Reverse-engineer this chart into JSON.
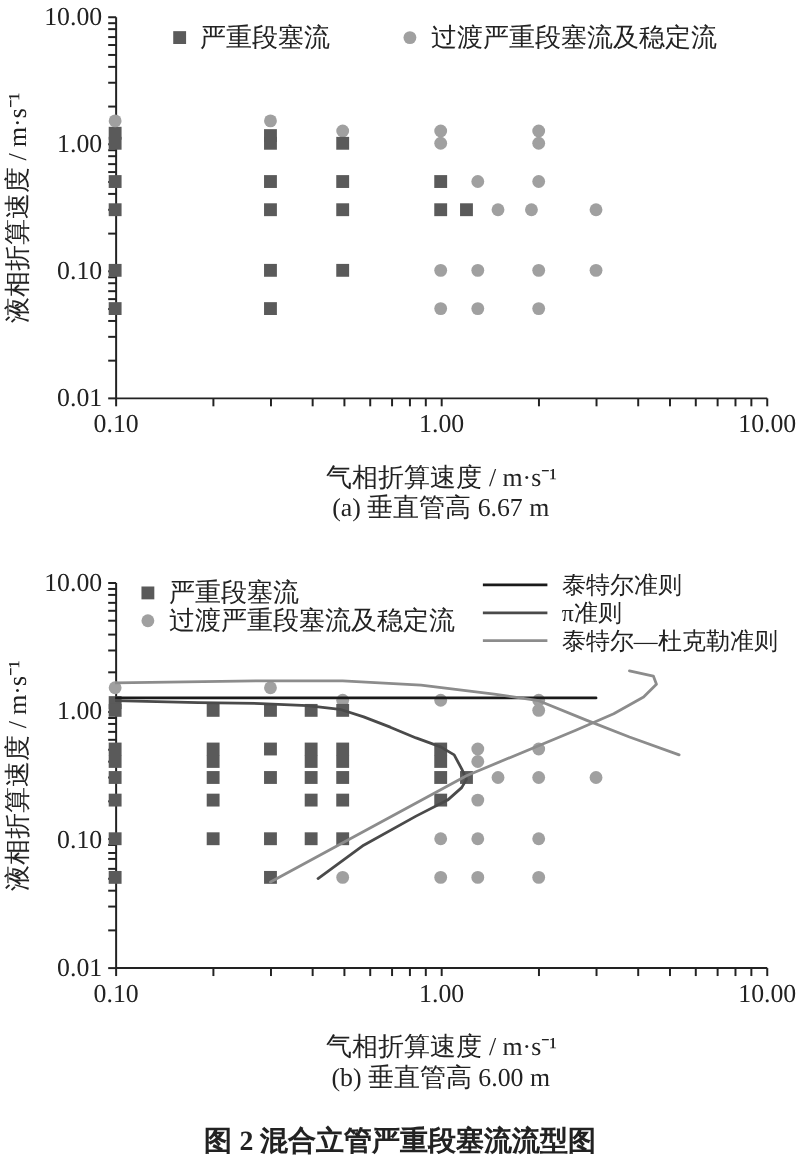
{
  "chart_data": [
    {
      "type": "scatter",
      "title": "(a) 垂直管高 6.67 m",
      "xlabel": "气相折算速度 / m·s⁻¹",
      "ylabel": "液相折算速度 / m·s⁻¹",
      "log": "xy",
      "legend": "top",
      "xlim": [
        0.1,
        10
      ],
      "ylim": [
        0.01,
        10
      ],
      "xticks": [
        {
          "value": 0.1,
          "label": "0.10"
        },
        {
          "value": 0.2,
          "label": null
        },
        {
          "value": 0.3,
          "label": null
        },
        {
          "value": 0.4,
          "label": null
        },
        {
          "value": 0.5,
          "label": null
        },
        {
          "value": 0.6,
          "label": null
        },
        {
          "value": 0.7,
          "label": null
        },
        {
          "value": 0.8,
          "label": null
        },
        {
          "value": 0.9,
          "label": null
        },
        {
          "value": 1,
          "label": "1.00"
        },
        {
          "value": 2,
          "label": null
        },
        {
          "value": 3,
          "label": null
        },
        {
          "value": 4,
          "label": null
        },
        {
          "value": 5,
          "label": null
        },
        {
          "value": 6,
          "label": null
        },
        {
          "value": 7,
          "label": null
        },
        {
          "value": 8,
          "label": null
        },
        {
          "value": 9,
          "label": null
        },
        {
          "value": 10,
          "label": "10.00"
        }
      ],
      "yticks": [
        {
          "value": 0.01,
          "label": "0.01"
        },
        {
          "value": 0.02,
          "label": null
        },
        {
          "value": 0.03,
          "label": null
        },
        {
          "value": 0.04,
          "label": null
        },
        {
          "value": 0.05,
          "label": null
        },
        {
          "value": 0.06,
          "label": null
        },
        {
          "value": 0.07,
          "label": null
        },
        {
          "value": 0.08,
          "label": null
        },
        {
          "value": 0.09,
          "label": null
        },
        {
          "value": 0.1,
          "label": "0.10"
        },
        {
          "value": 0.2,
          "label": null
        },
        {
          "value": 0.3,
          "label": null
        },
        {
          "value": 0.4,
          "label": null
        },
        {
          "value": 0.5,
          "label": null
        },
        {
          "value": 0.6,
          "label": null
        },
        {
          "value": 0.7,
          "label": null
        },
        {
          "value": 0.8,
          "label": null
        },
        {
          "value": 0.9,
          "label": null
        },
        {
          "value": 1,
          "label": "1.00"
        },
        {
          "value": 2,
          "label": null
        },
        {
          "value": 3,
          "label": null
        },
        {
          "value": 4,
          "label": null
        },
        {
          "value": 5,
          "label": null
        },
        {
          "value": 6,
          "label": null
        },
        {
          "value": 7,
          "label": null
        },
        {
          "value": 8,
          "label": null
        },
        {
          "value": 9,
          "label": null
        },
        {
          "value": 10,
          "label": "10.00"
        }
      ],
      "series": [
        {
          "name": "严重段塞流",
          "color": "#5a5a5a",
          "marker": "square",
          "x": [
            0.1,
            0.1,
            0.1,
            0.1,
            0.1,
            0.1,
            0.3,
            0.3,
            0.3,
            0.3,
            0.3,
            0.3,
            0.5,
            0.5,
            0.5,
            0.5,
            1.0,
            1.0,
            1.2
          ],
          "values": [
            1.2,
            1.0,
            0.5,
            0.3,
            0.1,
            0.05,
            1.15,
            1.0,
            0.5,
            0.3,
            0.1,
            0.05,
            1.0,
            0.5,
            0.3,
            0.1,
            0.5,
            0.3,
            0.3
          ]
        },
        {
          "name": "过渡严重段塞流及稳定流",
          "color": "#a0a0a0",
          "marker": "circle",
          "x": [
            0.1,
            0.3,
            0.5,
            1.0,
            1.0,
            1.0,
            1.0,
            1.3,
            1.3,
            1.3,
            1.5,
            1.9,
            2.0,
            2.0,
            2.0,
            2.0,
            2.0,
            3.0,
            3.0
          ],
          "values": [
            1.5,
            1.5,
            1.25,
            1.25,
            1.0,
            0.1,
            0.05,
            0.5,
            0.1,
            0.05,
            0.3,
            0.3,
            1.25,
            1.0,
            0.5,
            0.1,
            0.05,
            0.3,
            0.1
          ]
        }
      ]
    },
    {
      "type": "scatter",
      "title": "(b) 垂直管高 6.00 m",
      "xlabel": "气相折算速度 / m·s⁻¹",
      "ylabel": "液相折算速度 / m·s⁻¹",
      "log": "xy",
      "legend": "top",
      "xlim": [
        0.1,
        10
      ],
      "ylim": [
        0.01,
        10
      ],
      "xticks": [
        {
          "value": 0.1,
          "label": "0.10"
        },
        {
          "value": 0.2,
          "label": null
        },
        {
          "value": 0.3,
          "label": null
        },
        {
          "value": 0.4,
          "label": null
        },
        {
          "value": 0.5,
          "label": null
        },
        {
          "value": 0.6,
          "label": null
        },
        {
          "value": 0.7,
          "label": null
        },
        {
          "value": 0.8,
          "label": null
        },
        {
          "value": 0.9,
          "label": null
        },
        {
          "value": 1,
          "label": "1.00"
        },
        {
          "value": 2,
          "label": null
        },
        {
          "value": 3,
          "label": null
        },
        {
          "value": 4,
          "label": null
        },
        {
          "value": 5,
          "label": null
        },
        {
          "value": 6,
          "label": null
        },
        {
          "value": 7,
          "label": null
        },
        {
          "value": 8,
          "label": null
        },
        {
          "value": 9,
          "label": null
        },
        {
          "value": 10,
          "label": "10.00"
        }
      ],
      "yticks": [
        {
          "value": 0.01,
          "label": "0.01"
        },
        {
          "value": 0.02,
          "label": null
        },
        {
          "value": 0.03,
          "label": null
        },
        {
          "value": 0.04,
          "label": null
        },
        {
          "value": 0.05,
          "label": null
        },
        {
          "value": 0.06,
          "label": null
        },
        {
          "value": 0.07,
          "label": null
        },
        {
          "value": 0.08,
          "label": null
        },
        {
          "value": 0.09,
          "label": null
        },
        {
          "value": 0.1,
          "label": "0.10"
        },
        {
          "value": 0.2,
          "label": null
        },
        {
          "value": 0.3,
          "label": null
        },
        {
          "value": 0.4,
          "label": null
        },
        {
          "value": 0.5,
          "label": null
        },
        {
          "value": 0.6,
          "label": null
        },
        {
          "value": 0.7,
          "label": null
        },
        {
          "value": 0.8,
          "label": null
        },
        {
          "value": 0.9,
          "label": null
        },
        {
          "value": 1,
          "label": "1.00"
        },
        {
          "value": 2,
          "label": null
        },
        {
          "value": 3,
          "label": null
        },
        {
          "value": 4,
          "label": null
        },
        {
          "value": 5,
          "label": null
        },
        {
          "value": 6,
          "label": null
        },
        {
          "value": 7,
          "label": null
        },
        {
          "value": 8,
          "label": null
        },
        {
          "value": 9,
          "label": null
        },
        {
          "value": 10,
          "label": "10.00"
        }
      ],
      "series": [
        {
          "name": "严重段塞流",
          "color": "#5a5a5a",
          "marker": "square",
          "x": [
            0.1,
            0.1,
            0.1,
            0.1,
            0.1,
            0.1,
            0.1,
            0.1,
            0.2,
            0.2,
            0.2,
            0.2,
            0.2,
            0.2,
            0.3,
            0.3,
            0.3,
            0.3,
            0.3,
            0.4,
            0.4,
            0.4,
            0.4,
            0.4,
            0.4,
            0.5,
            0.5,
            0.5,
            0.5,
            0.5,
            0.5,
            1.0,
            1.0,
            1.0,
            1.0,
            1.2
          ],
          "values": [
            1.15,
            1.0,
            0.5,
            0.4,
            0.3,
            0.2,
            0.1,
            0.05,
            1.0,
            0.5,
            0.4,
            0.3,
            0.2,
            0.1,
            1.0,
            0.5,
            0.3,
            0.1,
            0.05,
            1.0,
            0.5,
            0.4,
            0.3,
            0.2,
            0.1,
            1.0,
            0.5,
            0.4,
            0.3,
            0.2,
            0.1,
            0.5,
            0.4,
            0.3,
            0.2,
            0.3
          ]
        },
        {
          "name": "过渡严重段塞流及稳定流",
          "color": "#a0a0a0",
          "marker": "circle",
          "x": [
            0.1,
            0.3,
            0.5,
            0.5,
            1.0,
            1.0,
            1.0,
            1.3,
            1.3,
            1.3,
            1.3,
            1.3,
            1.5,
            2.0,
            2.0,
            2.0,
            2.0,
            2.0,
            2.0,
            3.0
          ],
          "values": [
            1.5,
            1.5,
            1.2,
            0.05,
            1.2,
            0.1,
            0.05,
            0.5,
            0.4,
            0.2,
            0.1,
            0.05,
            0.3,
            1.2,
            1.0,
            0.5,
            0.3,
            0.1,
            0.05,
            0.3
          ]
        },
        {
          "name": "泰特尔准则",
          "type": "line",
          "color": "#1a1a1a",
          "x": [
            0.1,
            3.0
          ],
          "values": [
            1.25,
            1.25
          ]
        },
        {
          "name": "π准则",
          "type": "line",
          "color": "#4a4a4a",
          "x": [
            0.1,
            0.18,
            0.28,
            0.39,
            0.49,
            0.58,
            0.7,
            0.84,
            1.0,
            1.1,
            1.16,
            1.2,
            1.16,
            1.05,
            0.84,
            0.58,
            0.42
          ],
          "values": [
            1.19,
            1.15,
            1.13,
            1.09,
            1.02,
            0.89,
            0.74,
            0.61,
            0.52,
            0.45,
            0.35,
            0.29,
            0.25,
            0.2,
            0.15,
            0.089,
            0.049
          ]
        },
        {
          "name": "泰特尔—杜克勒准则",
          "type": "line",
          "color": "#8c8c8c",
          "x": [
            0.3,
            1.2,
            2.6,
            3.4,
            4.2,
            4.6,
            4.5,
            3.8,
            null,
            0.1,
            0.28,
            0.5,
            0.87,
            1.46,
            2.0,
            2.8,
            3.8,
            5.4
          ],
          "values": [
            0.046,
            0.31,
            0.7,
            0.94,
            1.27,
            1.6,
            1.85,
            2.03,
            null,
            1.64,
            1.7,
            1.7,
            1.57,
            1.34,
            1.19,
            0.84,
            0.62,
            0.45
          ]
        }
      ],
      "annotations": [
        "图 2   混合立管严重段塞流流型图"
      ]
    }
  ]
}
